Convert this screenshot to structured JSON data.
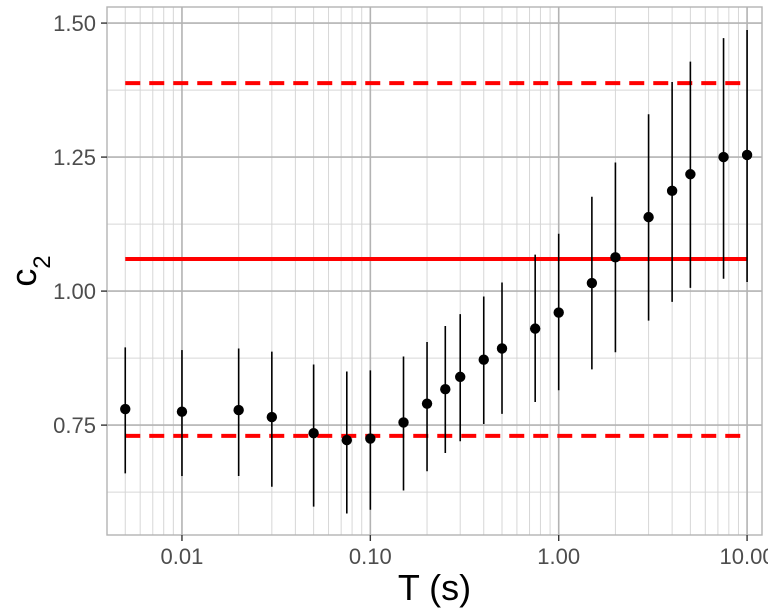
{
  "chart_data": {
    "type": "scatter",
    "title": "",
    "xlabel": "T (s)",
    "ylabel_main": "c",
    "ylabel_sub": "2",
    "x_scale": "log10",
    "xlim": [
      0.004,
      12
    ],
    "ylim": [
      0.545,
      1.53
    ],
    "x_ticks": [
      0.01,
      0.1,
      1,
      10
    ],
    "x_tick_labels": [
      "0.01",
      "0.10",
      "1.00",
      "10.00"
    ],
    "y_ticks": [
      0.75,
      1.0,
      1.25,
      1.5
    ],
    "y_tick_labels": [
      "0.75",
      "1.00",
      "1.25",
      "1.50"
    ],
    "y_minor_ticks": [
      0.625,
      0.875,
      1.125,
      1.375
    ],
    "grid": true,
    "legend": "none",
    "points": [
      {
        "x": 0.005,
        "y": 0.78,
        "lo": 0.66,
        "hi": 0.895
      },
      {
        "x": 0.01,
        "y": 0.775,
        "lo": 0.655,
        "hi": 0.89
      },
      {
        "x": 0.02,
        "y": 0.778,
        "lo": 0.655,
        "hi": 0.893
      },
      {
        "x": 0.03,
        "y": 0.765,
        "lo": 0.635,
        "hi": 0.887
      },
      {
        "x": 0.05,
        "y": 0.735,
        "lo": 0.598,
        "hi": 0.863
      },
      {
        "x": 0.075,
        "y": 0.722,
        "lo": 0.585,
        "hi": 0.85
      },
      {
        "x": 0.1,
        "y": 0.725,
        "lo": 0.592,
        "hi": 0.852
      },
      {
        "x": 0.15,
        "y": 0.755,
        "lo": 0.628,
        "hi": 0.878
      },
      {
        "x": 0.2,
        "y": 0.79,
        "lo": 0.664,
        "hi": 0.905
      },
      {
        "x": 0.25,
        "y": 0.817,
        "lo": 0.698,
        "hi": 0.935
      },
      {
        "x": 0.3,
        "y": 0.84,
        "lo": 0.72,
        "hi": 0.957
      },
      {
        "x": 0.4,
        "y": 0.872,
        "lo": 0.752,
        "hi": 0.99
      },
      {
        "x": 0.5,
        "y": 0.893,
        "lo": 0.771,
        "hi": 1.016
      },
      {
        "x": 0.75,
        "y": 0.93,
        "lo": 0.793,
        "hi": 1.068
      },
      {
        "x": 1.0,
        "y": 0.96,
        "lo": 0.815,
        "hi": 1.107
      },
      {
        "x": 1.5,
        "y": 1.015,
        "lo": 0.854,
        "hi": 1.176
      },
      {
        "x": 2.0,
        "y": 1.063,
        "lo": 0.886,
        "hi": 1.24
      },
      {
        "x": 3.0,
        "y": 1.138,
        "lo": 0.945,
        "hi": 1.33
      },
      {
        "x": 4.0,
        "y": 1.187,
        "lo": 0.98,
        "hi": 1.39
      },
      {
        "x": 5.0,
        "y": 1.218,
        "lo": 1.006,
        "hi": 1.428
      },
      {
        "x": 7.5,
        "y": 1.25,
        "lo": 1.023,
        "hi": 1.472
      },
      {
        "x": 10.0,
        "y": 1.254,
        "lo": 1.017,
        "hi": 1.487
      }
    ],
    "reference_lines": [
      {
        "y": 1.06,
        "style": "solid",
        "x_from": 0.005,
        "x_to": 10
      },
      {
        "y": 1.388,
        "style": "dashed",
        "x_from": 0.005,
        "x_to": 10
      },
      {
        "y": 0.73,
        "style": "dashed",
        "x_from": 0.005,
        "x_to": 10
      }
    ],
    "colors": {
      "points": "#000000",
      "reference": "#ff0000",
      "grid_major": "#b3b3b3",
      "grid_minor": "#d6d6d6",
      "panel_border": "#b3b3b3",
      "tick_label": "#4d4d4d"
    }
  }
}
